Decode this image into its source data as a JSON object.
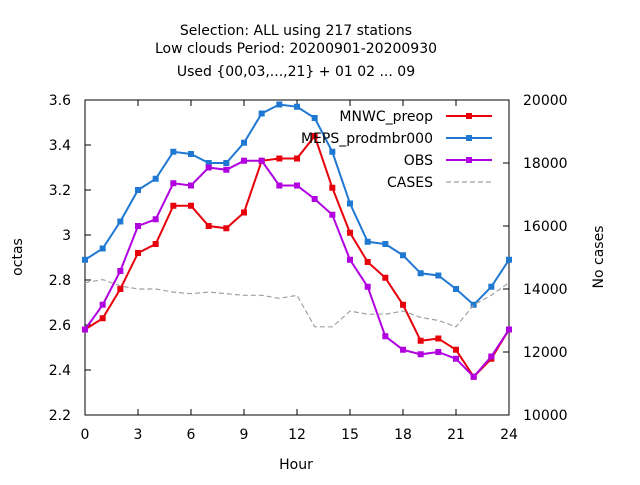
{
  "chart_data": {
    "type": "line",
    "title_lines": [
      "Selection: ALL using   217 stations",
      "Low clouds   Period: 20200901-20200930",
      "Used {00,03,...,21} + 01 02 ... 09"
    ],
    "xlabel": "Hour",
    "ylabel": "octas",
    "y2label": "No cases",
    "xlim": [
      0,
      24
    ],
    "ylim": [
      2.2,
      3.6
    ],
    "y2lim": [
      10000,
      20000
    ],
    "xticks": [
      0,
      3,
      6,
      9,
      12,
      15,
      18,
      21,
      24
    ],
    "xtick_labels": [
      "0",
      "3",
      "6",
      "9",
      "12",
      "15",
      "18",
      "21",
      "24"
    ],
    "yticks": [
      2.2,
      2.4,
      2.6,
      2.8,
      3.0,
      3.2,
      3.4,
      3.6
    ],
    "ytick_labels": [
      "2.2",
      "2.4",
      "2.6",
      "2.8",
      "3",
      "3.2",
      "3.4",
      "3.6"
    ],
    "y2ticks": [
      10000,
      12000,
      14000,
      16000,
      18000,
      20000
    ],
    "y2tick_labels": [
      "10000",
      "12000",
      "14000",
      "16000",
      "18000",
      "20000"
    ],
    "grid": false,
    "legend_position": "top-right",
    "x": [
      0,
      1,
      2,
      3,
      4,
      5,
      6,
      7,
      8,
      9,
      10,
      11,
      12,
      13,
      14,
      15,
      16,
      17,
      18,
      19,
      20,
      21,
      22,
      23,
      24
    ],
    "series": [
      {
        "name": "MNWC_preop",
        "color": "#e8000b",
        "marker": "square",
        "axis": "left",
        "values": [
          2.58,
          2.63,
          2.76,
          2.92,
          2.96,
          3.13,
          3.13,
          3.04,
          3.03,
          3.1,
          3.33,
          3.34,
          3.34,
          3.44,
          3.21,
          3.01,
          2.88,
          2.81,
          2.69,
          2.53,
          2.54,
          2.49,
          2.37,
          2.45,
          2.58
        ]
      },
      {
        "name": "MEPS_prodmbr000",
        "color": "#1f78d1",
        "marker": "square",
        "axis": "left",
        "values": [
          2.89,
          2.94,
          3.06,
          3.2,
          3.25,
          3.37,
          3.36,
          3.32,
          3.32,
          3.41,
          3.54,
          3.58,
          3.57,
          3.52,
          3.37,
          3.14,
          2.97,
          2.96,
          2.91,
          2.83,
          2.82,
          2.76,
          2.69,
          2.77,
          2.89
        ]
      },
      {
        "name": "OBS",
        "color": "#b000e0",
        "marker": "square",
        "axis": "left",
        "values": [
          2.58,
          2.69,
          2.84,
          3.04,
          3.07,
          3.23,
          3.22,
          3.3,
          3.29,
          3.33,
          3.33,
          3.22,
          3.22,
          3.16,
          3.09,
          2.89,
          2.77,
          2.55,
          2.49,
          2.47,
          2.48,
          2.45,
          2.37,
          2.46,
          2.58
        ]
      },
      {
        "name": "CASES",
        "color": "#a0a0a0",
        "marker": "none",
        "dashed": true,
        "axis": "right",
        "values": [
          14200,
          14300,
          14100,
          14000,
          14000,
          13900,
          13850,
          13900,
          13850,
          13800,
          13800,
          13700,
          13800,
          12800,
          12800,
          13300,
          13200,
          13200,
          13300,
          13100,
          13000,
          12800,
          13500,
          13800,
          14200
        ]
      }
    ]
  }
}
